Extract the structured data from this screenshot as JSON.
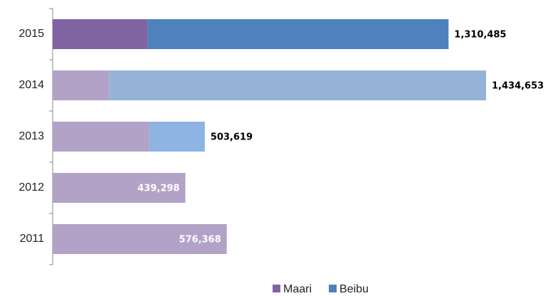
{
  "chart_data": {
    "type": "stacked-bar-horizontal",
    "categories": [
      "2015",
      "2014",
      "2013",
      "2012",
      "2011"
    ],
    "series": [
      {
        "name": "Maari",
        "color": "#8064a2",
        "point_colors": [
          "#8064a2",
          "#b3a2c7",
          "#b3a2c7",
          "#b3a2c7",
          "#b3a2c7"
        ],
        "values": [
          315000,
          188000,
          320000,
          439298,
          576368
        ]
      },
      {
        "name": "Beibu",
        "color": "#4f81bd",
        "point_colors": [
          "#4f81bd",
          "#95b3d7",
          "#8db4e2",
          null,
          null
        ],
        "values": [
          995485,
          1246653,
          183619,
          null,
          null
        ]
      }
    ],
    "totals": [
      1310485,
      1434653,
      503619,
      439298,
      576368
    ],
    "total_labels": [
      "1,310,485",
      "1,434,653",
      "503,619",
      "439,298",
      "576,368"
    ],
    "total_label_inside": [
      false,
      false,
      false,
      true,
      true
    ],
    "legend": "bottom"
  }
}
